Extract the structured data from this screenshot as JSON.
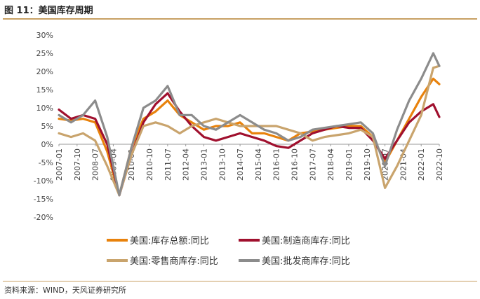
{
  "title": "图 11：美国库存周期",
  "source": "资料来源：WIND，天风证券研究所",
  "colors": {
    "rule": "#c8a063",
    "total": "#e8820c",
    "manufacturing": "#a0102e",
    "retail": "#c9a46d",
    "wholesale": "#8c8c8c"
  },
  "chart_data": {
    "type": "line",
    "x_tick_labels": [
      "2007-01",
      "2007-10",
      "2008-07",
      "2009-04",
      "2010-01",
      "2010-10",
      "2011-07",
      "2012-04",
      "2013-01",
      "2013-10",
      "2014-07",
      "2015-04",
      "2016-01",
      "2016-10",
      "2017-07",
      "2018-04",
      "2019-01",
      "2019-10",
      "2020-07",
      "2021-04",
      "2022-01",
      "2022-10"
    ],
    "y_tick_labels": [
      "30%",
      "25%",
      "20%",
      "15%",
      "10%",
      "5%",
      "0%",
      "-5%",
      "-10%",
      "-15%",
      "-20%"
    ],
    "ylim": [
      -20,
      30
    ],
    "legend_position": "bottom",
    "x": [
      "2007-01",
      "2007-07",
      "2008-01",
      "2008-07",
      "2009-01",
      "2009-07",
      "2010-01",
      "2010-07",
      "2011-01",
      "2011-07",
      "2012-01",
      "2012-07",
      "2013-01",
      "2013-07",
      "2014-01",
      "2014-07",
      "2015-01",
      "2015-07",
      "2016-01",
      "2016-07",
      "2017-01",
      "2017-07",
      "2018-01",
      "2018-07",
      "2019-01",
      "2019-07",
      "2020-01",
      "2020-07",
      "2021-01",
      "2021-07",
      "2022-01",
      "2022-07",
      "2022-10"
    ],
    "series": [
      {
        "name": "美国:库存总额:同比",
        "key": "total",
        "values": [
          7,
          6.5,
          7,
          6,
          -2,
          -14,
          -1,
          7,
          9,
          12,
          8,
          6,
          4,
          5,
          5,
          6,
          3,
          3,
          2,
          1,
          3,
          3.5,
          4,
          4.5,
          5,
          5,
          2,
          -5,
          1,
          7,
          13,
          18,
          16.5
        ]
      },
      {
        "name": "美国:制造商库存:同比",
        "key": "manufacturing",
        "values": [
          9.5,
          7,
          8,
          7,
          0,
          -14,
          -3,
          6,
          11,
          14,
          9,
          5,
          2,
          1,
          2,
          3,
          2,
          1,
          -0.5,
          -1,
          1,
          3,
          4,
          5,
          4.5,
          4.5,
          1,
          -4,
          1,
          6,
          9,
          11,
          7.5
        ]
      },
      {
        "name": "美国:零售商库存:同比",
        "key": "retail",
        "values": [
          3,
          2,
          3,
          1,
          -6,
          -14,
          -3,
          5,
          6,
          5,
          3,
          5,
          6,
          7,
          6,
          5,
          5,
          5,
          5,
          4,
          3,
          1,
          2,
          2.5,
          3,
          4,
          2,
          -12,
          -6,
          1,
          8,
          21,
          21.5
        ]
      },
      {
        "name": "美国:批发商库存:同比",
        "key": "wholesale",
        "values": [
          8,
          6,
          8,
          12,
          2,
          -14,
          -1,
          10,
          12,
          16,
          8,
          8,
          5,
          4,
          6,
          8,
          6,
          4,
          3,
          1,
          2,
          4,
          4.5,
          5,
          5.5,
          6,
          3,
          -6,
          4,
          12,
          18,
          25,
          21.5
        ]
      }
    ]
  }
}
